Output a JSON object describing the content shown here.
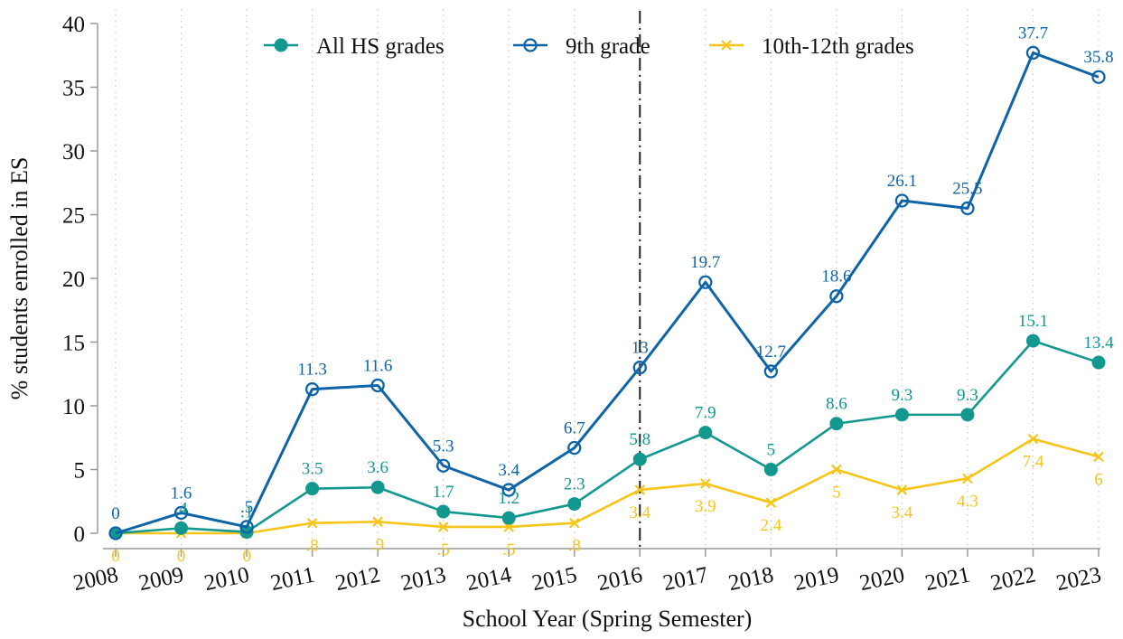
{
  "chart_data": {
    "type": "line",
    "title": "",
    "xlabel": "School Year (Spring Semester)",
    "ylabel": "% students enrolled in ES",
    "ylim": [
      0,
      40
    ],
    "yticks": [
      0,
      5,
      10,
      15,
      20,
      25,
      30,
      35,
      40
    ],
    "x": [
      "2008",
      "2009",
      "2010",
      "2011",
      "2012",
      "2013",
      "2014",
      "2015",
      "2016",
      "2017",
      "2018",
      "2019",
      "2020",
      "2021",
      "2022",
      "2023"
    ],
    "grid": "vertical dotted",
    "legend_position": "top-center",
    "reference_line": {
      "x": "2016",
      "style": "dash-dot"
    },
    "series": [
      {
        "name": "All HS grades",
        "color": "#13988f",
        "marker": "filled-circle",
        "values": [
          0,
          0.4,
          0.1,
          3.5,
          3.6,
          1.7,
          1.2,
          2.3,
          5.8,
          7.9,
          5,
          8.6,
          9.3,
          9.3,
          15.1,
          13.4
        ],
        "labels": [
          "",
          ".4",
          ".1",
          "3.5",
          "3.6",
          "1.7",
          "1.2",
          "2.3",
          "5.8",
          "7.9",
          "5",
          "8.6",
          "9.3",
          "9.3",
          "15.1",
          "13.4"
        ],
        "label_position": "above"
      },
      {
        "name": "9th grade",
        "color": "#0f64a8",
        "marker": "hollow-circle",
        "values": [
          0,
          1.6,
          0.5,
          11.3,
          11.6,
          5.3,
          3.4,
          6.7,
          13,
          19.7,
          12.7,
          18.6,
          26.1,
          25.5,
          37.7,
          35.8
        ],
        "labels": [
          "0",
          "1.6",
          ".5",
          "11.3",
          "11.6",
          "5.3",
          "3.4",
          "6.7",
          "13",
          "19.7",
          "12.7",
          "18.6",
          "26.1",
          "25.5",
          "37.7",
          "35.8"
        ],
        "label_position": "above"
      },
      {
        "name": "10th-12th grades",
        "color": "#f5c518",
        "marker": "x",
        "values": [
          0,
          0,
          0,
          0.8,
          0.9,
          0.5,
          0.5,
          0.8,
          3.4,
          3.9,
          2.4,
          5,
          3.4,
          4.3,
          7.4,
          6
        ],
        "labels": [
          "0",
          "0",
          "0",
          ".8",
          ".9",
          ".5",
          ".5",
          ".8",
          "3.4",
          "3.9",
          "2.4",
          "5",
          "3.4",
          "4.3",
          "7.4",
          "6"
        ],
        "label_position": "below"
      }
    ]
  }
}
